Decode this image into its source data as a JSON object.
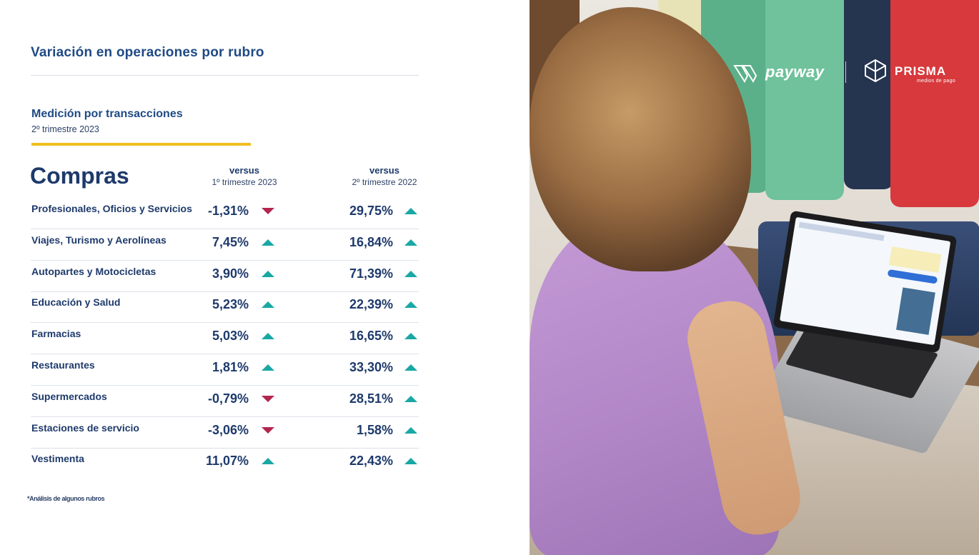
{
  "header": {
    "title": "Variación en operaciones por rubro",
    "subtitle": "Medición por transacciones",
    "period": "2º trimestre 2023"
  },
  "section": "Compras",
  "columns": [
    {
      "label": "versus",
      "period": "1º trimestre  2023"
    },
    {
      "label": "versus",
      "period": "2º trimestre 2022"
    }
  ],
  "rows": [
    {
      "name": "Profesionales, Oficios y Servicios",
      "vs_q1_2023": "-1,31%",
      "vs_q1_dir": "down",
      "vs_q2_2022": "29,75%",
      "vs_q2_dir": "up"
    },
    {
      "name": "Viajes, Turismo y Aerolíneas",
      "vs_q1_2023": "7,45%",
      "vs_q1_dir": "up",
      "vs_q2_2022": "16,84%",
      "vs_q2_dir": "up"
    },
    {
      "name": "Autopartes y Motocicletas",
      "vs_q1_2023": "3,90%",
      "vs_q1_dir": "up",
      "vs_q2_2022": "71,39%",
      "vs_q2_dir": "up"
    },
    {
      "name": "Educación y Salud",
      "vs_q1_2023": "5,23%",
      "vs_q1_dir": "up",
      "vs_q2_2022": "22,39%",
      "vs_q2_dir": "up"
    },
    {
      "name": "Farmacias",
      "vs_q1_2023": "5,03%",
      "vs_q1_dir": "up",
      "vs_q2_2022": "16,65%",
      "vs_q2_dir": "up"
    },
    {
      "name": "Restaurantes",
      "vs_q1_2023": "1,81%",
      "vs_q1_dir": "up",
      "vs_q2_2022": "33,30%",
      "vs_q2_dir": "up"
    },
    {
      "name": "Supermercados",
      "vs_q1_2023": "-0,79%",
      "vs_q1_dir": "down",
      "vs_q2_2022": "28,51%",
      "vs_q2_dir": "up"
    },
    {
      "name": "Estaciones de servicio",
      "vs_q1_2023": "-3,06%",
      "vs_q1_dir": "down",
      "vs_q2_2022": "1,58%",
      "vs_q2_dir": "up"
    },
    {
      "name": "Vestimenta",
      "vs_q1_2023": "11,07%",
      "vs_q1_dir": "up",
      "vs_q2_2022": "22,43%",
      "vs_q2_dir": "up"
    }
  ],
  "footnote": "*Análisis de algunos rubros",
  "brands": {
    "payway": "payway",
    "prisma": "PRISMA",
    "prisma_sub": "medios de pago"
  },
  "icons": {
    "up": "triangle-up-icon",
    "down": "triangle-down-icon"
  },
  "colors": {
    "up": "#1aa8a5",
    "down": "#b3264e",
    "accent": "#f0be21",
    "navy": "#1e3a6b"
  }
}
